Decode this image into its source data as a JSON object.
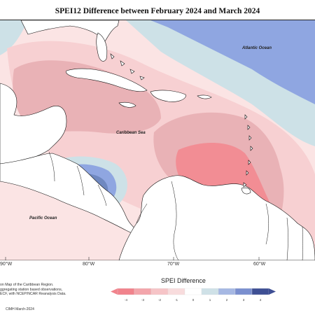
{
  "title": "SPEI12 Difference between February 2024 and March 2024",
  "labels": {
    "atlantic": "Atlantic Ocean",
    "caribbean": "Caribbean Sea",
    "pacific": "Pacific Ocean"
  },
  "lon_ticks": [
    "90°W",
    "80°W",
    "70°W",
    "60°W"
  ],
  "credit_lines": [
    "on Map of the Caribbean Region.",
    "ggregating station based observations,",
    "ECF, with NCEP/NCAR Reanalysis Data."
  ],
  "footer": "CIMH March-2024",
  "legend": {
    "title": "SPEI Difference",
    "tick_labels": [
      "-4",
      "-3",
      "-2",
      "-1",
      "0",
      "1",
      "2",
      "3",
      "4"
    ],
    "colors": [
      "#f1838c",
      "#f3a5ab",
      "#f6c4c7",
      "#f8dcdd",
      "#ffffff",
      "#cfe1e7",
      "#a6b8e3",
      "#7a8fcf",
      "#3e4f94"
    ]
  },
  "colors": {
    "deficit_strong": "#f28d94",
    "deficit_mid": "#e9b2b6",
    "deficit_light": "#f7d0d2",
    "deficit_faint": "#fbe4e4",
    "surplus_light": "#cde1e7",
    "surplus_mid": "#8fa6e1",
    "surplus_strong": "#6f88c0",
    "land": "#ffffff"
  }
}
